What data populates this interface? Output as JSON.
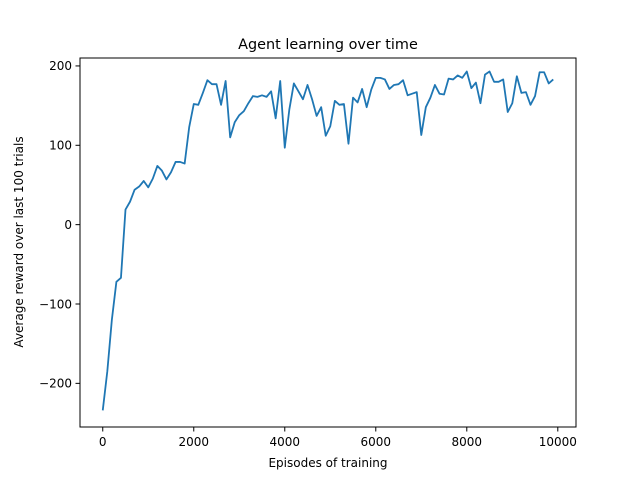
{
  "chart_data": {
    "type": "line",
    "title": "Agent learning over time",
    "xlabel": "Episodes of training",
    "ylabel": "Average reward over last 100 trials",
    "xlim": [
      -500,
      10400
    ],
    "ylim": [
      -255,
      210
    ],
    "xticks": [
      0,
      2000,
      4000,
      6000,
      8000,
      10000
    ],
    "yticks": [
      -200,
      -100,
      0,
      100,
      200
    ],
    "ytick_labels": [
      "−200",
      "−100",
      "0",
      "100",
      "200"
    ],
    "grid": false,
    "line_color": "#1f77b4",
    "series": [
      {
        "x": [
          0,
          100,
          200,
          300,
          400,
          500,
          600,
          700,
          800,
          900,
          1000,
          1100,
          1200,
          1300,
          1400,
          1500,
          1600,
          1700,
          1800,
          1900,
          2000,
          2100,
          2200,
          2300,
          2400,
          2500,
          2600,
          2700,
          2800,
          2900,
          3000,
          3100,
          3200,
          3300,
          3400,
          3500,
          3600,
          3700,
          3800,
          3900,
          4000,
          4100,
          4200,
          4300,
          4400,
          4500,
          4600,
          4700,
          4800,
          4900,
          5000,
          5100,
          5200,
          5300,
          5400,
          5500,
          5600,
          5700,
          5800,
          5900,
          6000,
          6100,
          6200,
          6300,
          6400,
          6500,
          6600,
          6700,
          6800,
          6900,
          7000,
          7100,
          7200,
          7300,
          7400,
          7500,
          7600,
          7700,
          7800,
          7900,
          8000,
          8100,
          8200,
          8300,
          8400,
          8500,
          8600,
          8700,
          8800,
          8900,
          9000,
          9100,
          9200,
          9300,
          9400,
          9500,
          9600,
          9700,
          9800,
          9900
        ],
        "y": [
          -234,
          -185,
          -120,
          -72,
          -67,
          19,
          29,
          44,
          48,
          55,
          47,
          58,
          74,
          68,
          57,
          66,
          79,
          79,
          77,
          123,
          152,
          151,
          166,
          182,
          177,
          177,
          151,
          181,
          110,
          129,
          138,
          143,
          153,
          162,
          161,
          163,
          161,
          168,
          134,
          181,
          97,
          145,
          178,
          168,
          158,
          176,
          158,
          137,
          148,
          112,
          124,
          156,
          151,
          152,
          102,
          160,
          154,
          171,
          148,
          170,
          185,
          185,
          183,
          171,
          176,
          177,
          182,
          163,
          165,
          167,
          113,
          148,
          160,
          176,
          165,
          164,
          184,
          183,
          188,
          185,
          193,
          172,
          179,
          153,
          189,
          193,
          180,
          180,
          183,
          142,
          153,
          187,
          166,
          167,
          151,
          162,
          192,
          192,
          178,
          183
        ]
      }
    ]
  }
}
